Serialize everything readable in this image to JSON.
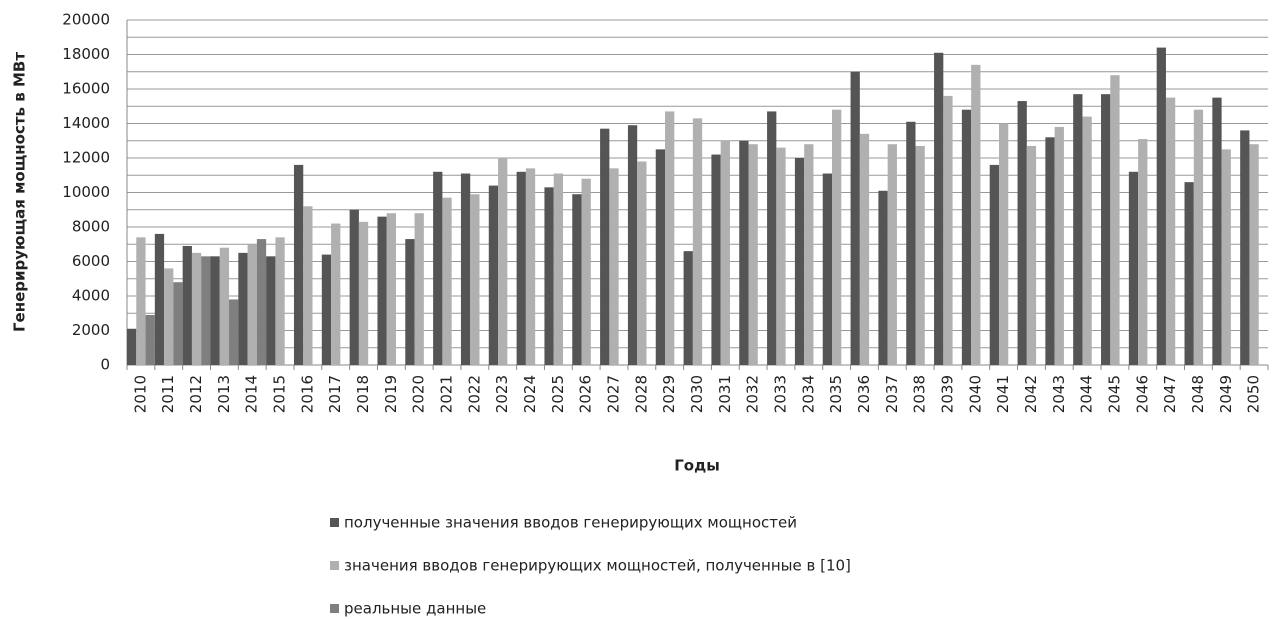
{
  "chart_data": {
    "type": "bar",
    "y_label": "Генерирующая мощность в МВт",
    "x_label": "Годы",
    "categories": [
      "2010",
      "2011",
      "2012",
      "2013",
      "2014",
      "2015",
      "2016",
      "2017",
      "2018",
      "2019",
      "2020",
      "2021",
      "2022",
      "2023",
      "2024",
      "2025",
      "2026",
      "2027",
      "2028",
      "2029",
      "2030",
      "2031",
      "2032",
      "2033",
      "2034",
      "2035",
      "2036",
      "2037",
      "2038",
      "2039",
      "2040",
      "2041",
      "2042",
      "2043",
      "2044",
      "2045",
      "2046",
      "2047",
      "2048",
      "2049",
      "2050"
    ],
    "series": [
      {
        "name": "полученные значения вводов генерирующих мощностей",
        "color": "#555555",
        "values": [
          2100,
          7600,
          6900,
          6300,
          6500,
          6300,
          11600,
          6400,
          9000,
          8600,
          7300,
          11200,
          11100,
          10400,
          11200,
          10300,
          9900,
          13700,
          13900,
          12500,
          6600,
          12200,
          13000,
          14700,
          12000,
          11100,
          17000,
          10100,
          14100,
          18100,
          14800,
          11600,
          15300,
          13200,
          15700,
          15700,
          11200,
          18400,
          10600,
          15500,
          13600
        ]
      },
      {
        "name": "значения вводов генерирующих мощностей, полученные в [10]",
        "color": "#b0b0b0",
        "values": [
          7400,
          5600,
          6500,
          6800,
          7000,
          7400,
          9200,
          8200,
          8300,
          8800,
          8800,
          9700,
          9900,
          12000,
          11400,
          11100,
          10800,
          11400,
          11800,
          14700,
          14300,
          13000,
          12800,
          12600,
          12800,
          14800,
          13400,
          12800,
          12700,
          15600,
          17400,
          14000,
          12700,
          13800,
          14400,
          16800,
          13100,
          15500,
          14800,
          12500,
          12800
        ]
      },
      {
        "name": "реальные данные",
        "color": "#7f7f7f",
        "values": [
          2900,
          4800,
          6300,
          3800,
          7300,
          null,
          null,
          null,
          null,
          null,
          null,
          null,
          null,
          null,
          null,
          null,
          null,
          null,
          null,
          null,
          null,
          null,
          null,
          null,
          null,
          null,
          null,
          null,
          null,
          null,
          null,
          null,
          null,
          null,
          null,
          null,
          null,
          null,
          null,
          null,
          null
        ]
      }
    ],
    "ylim": [
      0,
      20000
    ],
    "yticks": [
      0,
      2000,
      4000,
      6000,
      8000,
      10000,
      12000,
      14000,
      16000,
      18000,
      20000
    ],
    "minor_yticks": [
      1000,
      3000,
      5000,
      7000,
      9000,
      11000,
      13000,
      15000,
      17000,
      19000
    ],
    "grid": true,
    "legend": "bottom"
  }
}
